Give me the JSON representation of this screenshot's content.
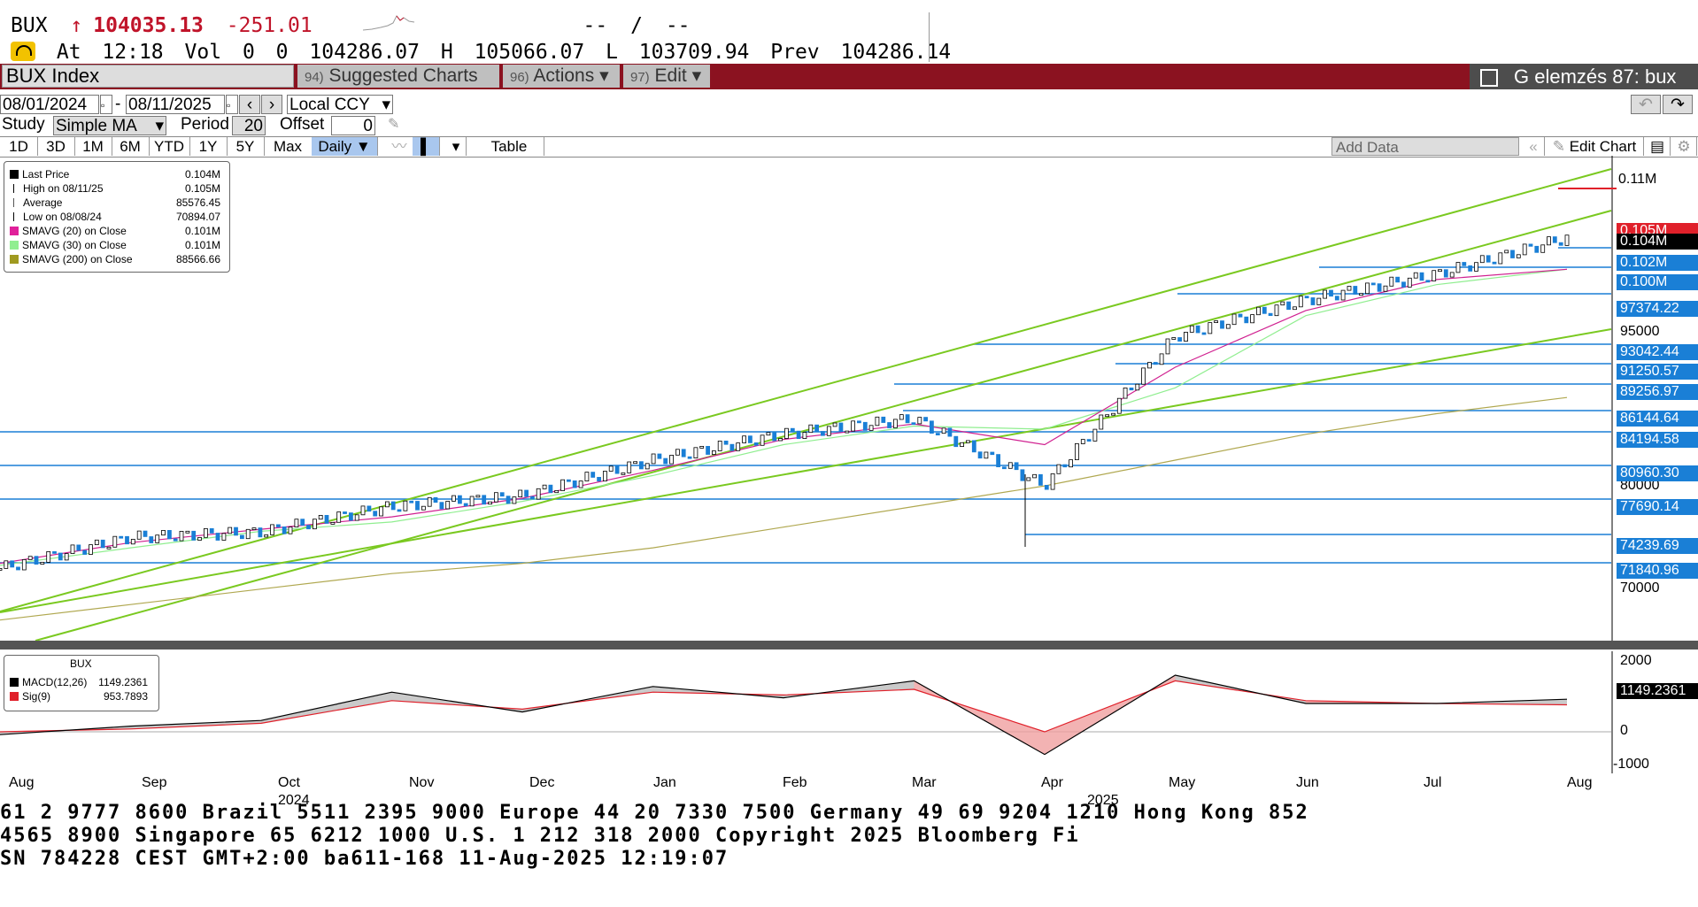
{
  "header": {
    "ticker": "BUX",
    "arrow": "↑",
    "last": "104035.13",
    "change": "-251.01",
    "dash1": "--",
    "slash": "/",
    "dash2": "--",
    "at": "At",
    "time": "12:18",
    "vol_label": "Vol",
    "vol1": "0",
    "vol2": "0",
    "open": "104286.07",
    "h_label": "H",
    "high": "105066.07",
    "l_label": "L",
    "low": "103709.94",
    "prev_label": "Prev",
    "prev": "104286.14"
  },
  "toolbar": {
    "security": "BUX Index",
    "suggested_num": "94)",
    "suggested": "Suggested Charts",
    "actions_num": "96)",
    "actions": "Actions",
    "edit_num": "97)",
    "edit": "Edit",
    "g_label": "G elemzés 87: bux"
  },
  "controls": {
    "start_date": "08/01/2024",
    "end_date": "08/11/2025",
    "currency": "Local CCY",
    "study_label": "Study",
    "study_value": "Simple MA",
    "period_label": "Period",
    "period_value": "20",
    "offset_label": "Offset",
    "offset_value": "0",
    "ranges": [
      "1D",
      "3D",
      "1M",
      "6M",
      "YTD",
      "1Y",
      "5Y",
      "Max"
    ],
    "frequency": "Daily",
    "table_label": "Table",
    "add_data": "Add Data",
    "edit_chart": "Edit Chart"
  },
  "legend": {
    "items": [
      {
        "label": "Last Price",
        "value": "0.104M",
        "color": "#000000",
        "kind": "box"
      },
      {
        "label": "High on 08/11/25",
        "value": "0.105M",
        "color": "#000000",
        "kind": "high"
      },
      {
        "label": "Average",
        "value": "85576.45",
        "color": "#555555",
        "kind": "avg"
      },
      {
        "label": "Low on 08/08/24",
        "value": "70894.07",
        "color": "#000000",
        "kind": "low"
      },
      {
        "label": "SMAVG (20)  on Close",
        "value": "0.101M",
        "color": "#e0209a",
        "kind": "box"
      },
      {
        "label": "SMAVG (30)  on Close",
        "value": "0.101M",
        "color": "#90ee90",
        "kind": "box"
      },
      {
        "label": "SMAVG (200)  on Close",
        "value": "88566.66",
        "color": "#a09a20",
        "kind": "box"
      }
    ]
  },
  "price_axis": {
    "ticks": [
      "0.11M",
      "95000",
      "80000",
      "70000"
    ],
    "labels": [
      {
        "text": "0.105M",
        "color": "#e0202a"
      },
      {
        "text": "0.104M",
        "color": "#000000"
      },
      {
        "text": "0.102M",
        "color": "#1a7fd6"
      },
      {
        "text": "0.100M",
        "color": "#1a7fd6"
      },
      {
        "text": "97374.22",
        "color": "#1a7fd6"
      },
      {
        "text": "93042.44",
        "color": "#1a7fd6"
      },
      {
        "text": "91250.57",
        "color": "#1a7fd6"
      },
      {
        "text": "89256.97",
        "color": "#1a7fd6"
      },
      {
        "text": "86144.64",
        "color": "#1a7fd6"
      },
      {
        "text": "84194.58",
        "color": "#1a7fd6"
      },
      {
        "text": "80960.30",
        "color": "#1a7fd6"
      },
      {
        "text": "77690.14",
        "color": "#1a7fd6"
      },
      {
        "text": "74239.69",
        "color": "#1a7fd6"
      },
      {
        "text": "71840.96",
        "color": "#1a7fd6"
      }
    ]
  },
  "macd": {
    "title": "BUX",
    "macd_label": "MACD(12,26)",
    "macd_value": "1149.2361",
    "sig_label": "Sig(9)",
    "sig_value": "953.7893",
    "ticks": [
      "2000",
      "0",
      "-1000"
    ],
    "last_label": "1149.2361"
  },
  "x_axis": {
    "months": [
      "Aug",
      "Sep",
      "Oct",
      "Nov",
      "Dec",
      "Jan",
      "Feb",
      "Mar",
      "Apr",
      "May",
      "Jun",
      "Jul",
      "Aug"
    ],
    "years": [
      "2024",
      "2025"
    ]
  },
  "footer": {
    "line1": "61 2 9777 8600 Brazil 5511 2395 9000 Europe 44 20 7330 7500 Germany 49 69 9204 1210 Hong Kong 852",
    "line2": " 4565 8900       Singapore 65 6212 1000       U.S. 1 212 318 2000          Copyright 2025 Bloomberg Fi",
    "line3": "                                             SN 784228 CEST GMT+2:00 ba611-168 11-Aug-2025 12:19:07"
  },
  "chart_data": {
    "type": "line",
    "x": [
      "2024-08",
      "2024-09",
      "2024-10",
      "2024-11",
      "2024-12",
      "2025-01",
      "2025-02",
      "2025-03",
      "2025-04",
      "2025-05",
      "2025-06",
      "2025-07",
      "2025-08"
    ],
    "series": [
      {
        "name": "Last Price",
        "values": [
          72000,
          75000,
          75500,
          78000,
          79000,
          82500,
          85000,
          86500,
          80000,
          94500,
          98000,
          100500,
          104035
        ]
      },
      {
        "name": "SMAVG (20)  on Close",
        "values": [
          72500,
          74500,
          75800,
          77000,
          78800,
          81500,
          84500,
          86000,
          84000,
          91500,
          97000,
          100000,
          101000
        ]
      },
      {
        "name": "SMAVG (30)  on Close",
        "values": [
          72300,
          74000,
          75600,
          76500,
          78500,
          81000,
          84000,
          85800,
          85500,
          89500,
          96500,
          99500,
          101000
        ]
      },
      {
        "name": "SMAVG (200)  on Close",
        "values": [
          67000,
          68500,
          70000,
          71500,
          72500,
          74000,
          76000,
          78000,
          80000,
          82500,
          85000,
          87000,
          88566
        ]
      }
    ],
    "macd": {
      "series": [
        {
          "name": "MACD(12,26)",
          "values": [
            -100,
            200,
            400,
            1400,
            700,
            1600,
            1200,
            1800,
            -800,
            2000,
            1000,
            1000,
            1149
          ]
        },
        {
          "name": "Sig(9)",
          "values": [
            0,
            100,
            300,
            1100,
            800,
            1400,
            1300,
            1500,
            0,
            1800,
            1100,
            1000,
            954
          ]
        }
      ]
    },
    "ylim": [
      65000,
      112000
    ]
  }
}
